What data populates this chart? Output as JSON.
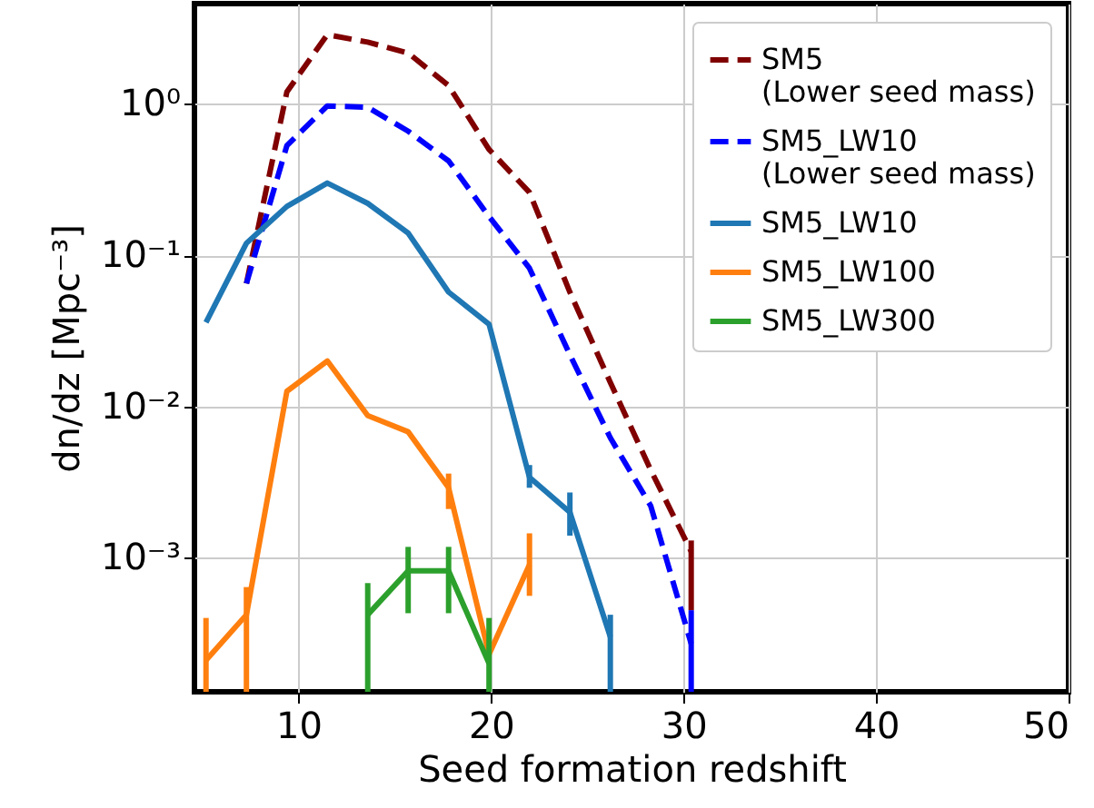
{
  "chart_data": {
    "type": "line",
    "xlabel": "Seed formation redshift",
    "ylabel": "dn/dz [Mpc⁻³]",
    "xlim": [
      4.6,
      50
    ],
    "xticks": [
      10,
      20,
      30,
      40,
      50
    ],
    "ylim": [
      0.00013,
      4.6
    ],
    "yticks": [
      {
        "value": 1,
        "label": "10⁰"
      },
      {
        "value": 0.1,
        "label": "10⁻¹"
      },
      {
        "value": 0.01,
        "label": "10⁻²"
      },
      {
        "value": 0.001,
        "label": "10⁻³"
      }
    ],
    "log": "y",
    "grid": true,
    "legend": "top right",
    "marker": "none",
    "series": [
      {
        "name": "SM5\n (Lower seed mass)",
        "color": "#800000",
        "line_style": "dashed",
        "x": [
          7.3,
          9.4,
          11.5,
          13.6,
          15.7,
          17.8,
          19.9,
          22.0,
          24.1,
          26.2,
          28.3,
          30.4
        ],
        "values": [
          0.065,
          1.2,
          2.87,
          2.56,
          2.17,
          1.32,
          0.5,
          0.26,
          0.057,
          0.0144,
          0.0038,
          0.0011
        ],
        "errors": [
          null,
          null,
          null,
          null,
          null,
          null,
          null,
          null,
          null,
          null,
          null,
          [
            0.00045,
            0.0013
          ]
        ]
      },
      {
        "name": "SM5_LW10\n (Lower seed mass)",
        "color": "#0000ff",
        "line_style": "dashed",
        "x": [
          7.3,
          9.4,
          11.5,
          13.6,
          15.7,
          17.8,
          19.9,
          22.0,
          24.1,
          26.2,
          28.3,
          30.4
        ],
        "values": [
          0.065,
          0.53,
          0.97,
          0.95,
          0.66,
          0.42,
          0.18,
          0.082,
          0.022,
          0.0062,
          0.0022,
          0.00027
        ],
        "errors": [
          null,
          null,
          null,
          null,
          null,
          null,
          null,
          null,
          null,
          null,
          null,
          [
            0.00013,
            0.00045
          ]
        ]
      },
      {
        "name": "SM5_LW10",
        "color": "#1f77b4",
        "line_style": "solid",
        "x": [
          5.2,
          7.3,
          9.4,
          11.5,
          13.6,
          15.7,
          17.8,
          19.9,
          22.0,
          24.1,
          26.2
        ],
        "values": [
          0.036,
          0.12,
          0.21,
          0.3,
          0.22,
          0.14,
          0.057,
          0.035,
          0.0034,
          0.002,
          0.0003
        ],
        "errors": [
          null,
          null,
          null,
          null,
          null,
          null,
          null,
          null,
          [
            0.0029,
            0.0041
          ],
          [
            0.0014,
            0.0027
          ],
          [
            0.00013,
            0.00042
          ]
        ]
      },
      {
        "name": "SM5_LW100",
        "color": "#ff7f0e",
        "line_style": "solid",
        "x": [
          5.2,
          7.3,
          9.4,
          11.5,
          13.6,
          15.7,
          17.8,
          19.9,
          22.0
        ],
        "values": [
          0.00021,
          0.00042,
          0.0126,
          0.02,
          0.0087,
          0.0068,
          0.0029,
          0.00023,
          0.0009
        ],
        "errors": [
          [
            0.00013,
            0.0004
          ],
          [
            0.00013,
            0.00064
          ],
          null,
          null,
          null,
          null,
          [
            0.0021,
            0.0036
          ],
          null,
          [
            0.00056,
            0.00145
          ]
        ]
      },
      {
        "name": "SM5_LW300",
        "color": "#2ca02c",
        "line_style": "solid",
        "x": [
          13.6,
          15.7,
          17.8,
          19.9
        ],
        "values": [
          0.00042,
          0.00082,
          0.00082,
          0.0002
        ],
        "errors": [
          [
            0.00013,
            0.00068
          ],
          [
            0.00043,
            0.00118
          ],
          [
            0.00043,
            0.00118
          ],
          [
            0.00013,
            0.0004
          ]
        ]
      }
    ]
  }
}
